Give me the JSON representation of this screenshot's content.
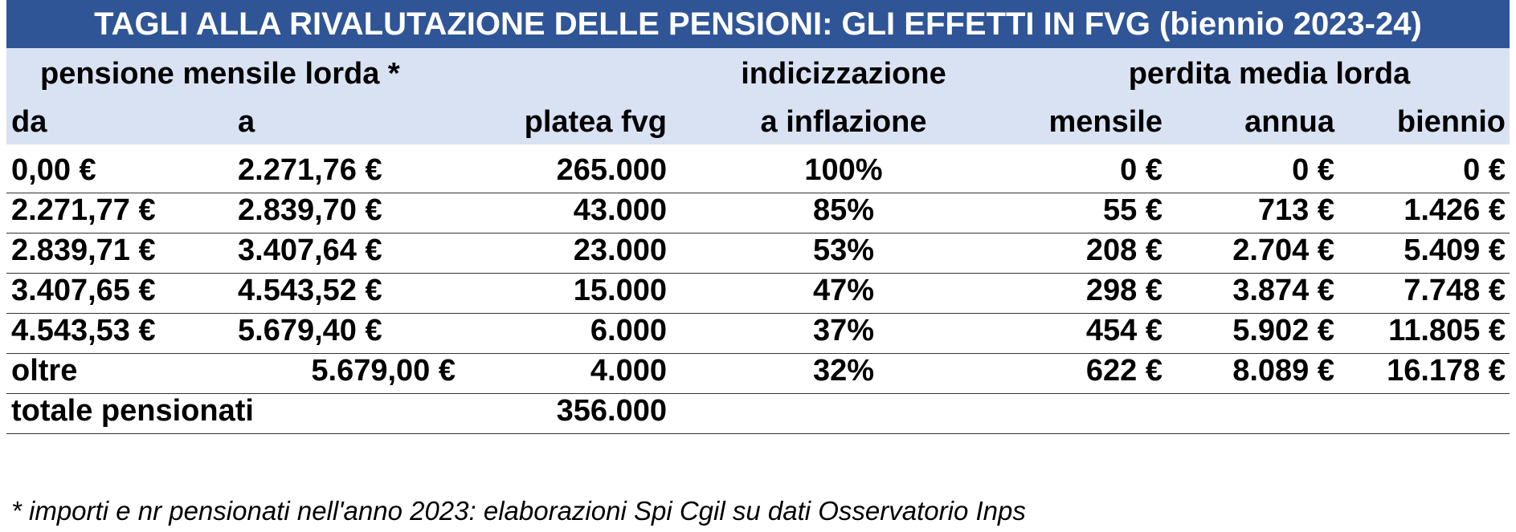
{
  "chart_data": {
    "type": "table",
    "title": "TAGLI ALLA RIVALUTAZIONE DELLE PENSIONI: GLI EFFETTI IN FVG (biennio 2023-24)",
    "header_groups": {
      "pension": "pensione mensile lorda *",
      "indexation": "indicizzazione",
      "loss": "perdita media lorda"
    },
    "columns": [
      "da",
      "a",
      "platea fvg",
      "a inflazione",
      "mensile",
      "annua",
      "biennio"
    ],
    "rows": [
      [
        "0,00 €",
        "2.271,76 €",
        "265.000",
        "100%",
        "0 €",
        "0 €",
        "0 €"
      ],
      [
        "2.271,77 €",
        "2.839,70 €",
        "43.000",
        "85%",
        "55 €",
        "713 €",
        "1.426 €"
      ],
      [
        "2.839,71 €",
        "3.407,64 €",
        "23.000",
        "53%",
        "208 €",
        "2.704 €",
        "5.409 €"
      ],
      [
        "3.407,65 €",
        "4.543,52 €",
        "15.000",
        "47%",
        "298 €",
        "3.874 €",
        "7.748 €"
      ],
      [
        "4.543,53 €",
        "5.679,40 €",
        "6.000",
        "37%",
        "454 €",
        "5.902 €",
        "11.805 €"
      ],
      [
        "oltre",
        "5.679,00 €",
        "4.000",
        "32%",
        "622 €",
        "8.089 €",
        "16.178 €"
      ]
    ],
    "total": {
      "label": "totale pensionati",
      "value": "356.000"
    },
    "footnote": "* importi e nr pensionati nell'anno 2023: elaborazioni Spi Cgil su dati Osservatorio Inps",
    "colors": {
      "title_bg": "#2f5597",
      "header_bg": "#d9e2f3",
      "title_text": "#ffffff"
    }
  }
}
